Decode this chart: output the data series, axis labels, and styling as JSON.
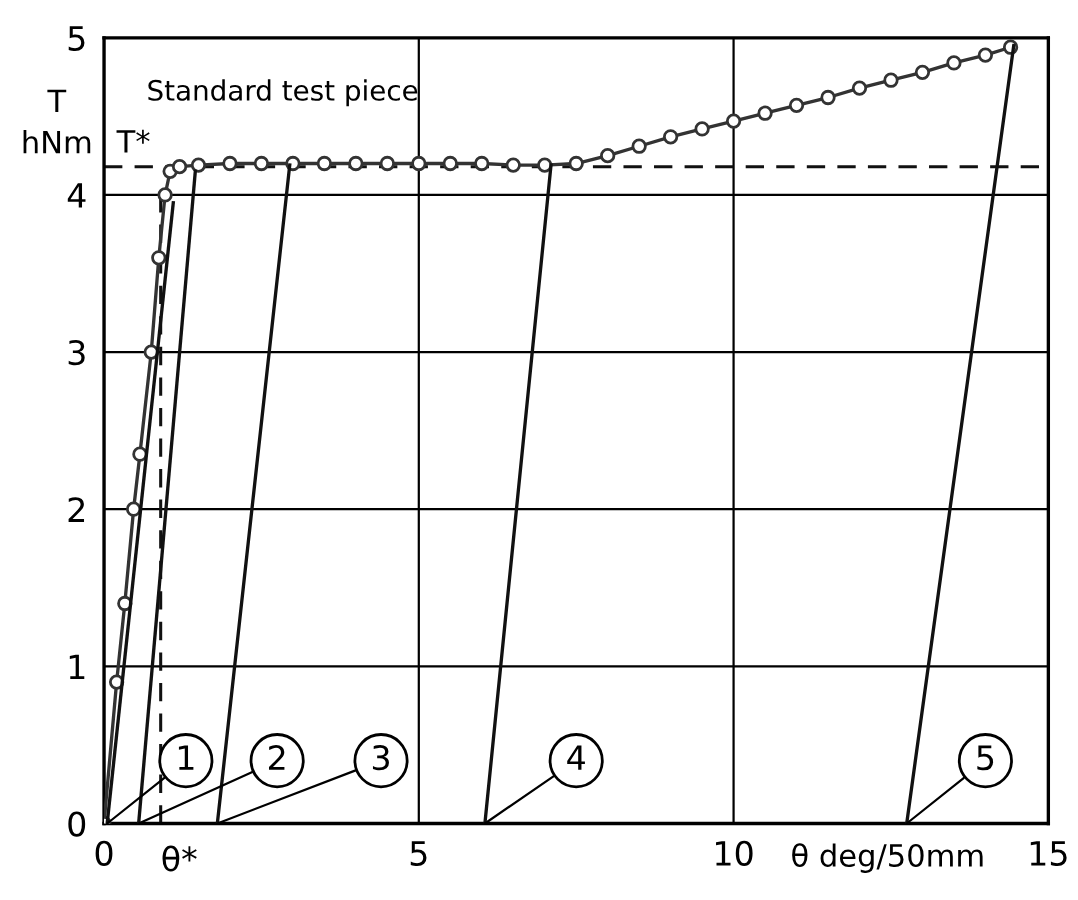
{
  "chart_data": {
    "type": "line",
    "xlabel": "θ deg/50mm",
    "ylabel": "T\nhNm",
    "xlim": [
      0,
      15
    ],
    "ylim": [
      0,
      5
    ],
    "xticks": [
      0,
      5,
      10,
      15
    ],
    "yticks": [
      0,
      1,
      2,
      3,
      4,
      5
    ],
    "grid": true,
    "series": [
      {
        "color": "#333333",
        "marker": "circle",
        "x": [
          0,
          0.2,
          0.33,
          0.47,
          0.57,
          0.75,
          0.87,
          0.97,
          1.05,
          1.2,
          1.5,
          2,
          2.5,
          3,
          3.5,
          4,
          4.5,
          5,
          5.5,
          6,
          6.5,
          7,
          7.5,
          8,
          8.5,
          9,
          9.5,
          10,
          10.5,
          11,
          11.5,
          12,
          12.5,
          13,
          13.5,
          14,
          14.4
        ],
        "values": [
          0,
          0.9,
          1.4,
          2,
          2.35,
          3,
          3.6,
          4,
          4.15,
          4.18,
          4.19,
          4.2,
          4.2,
          4.2,
          4.2,
          4.2,
          4.2,
          4.2,
          4.2,
          4.2,
          4.19,
          4.19,
          4.2,
          4.25,
          4.31,
          4.37,
          4.42,
          4.47,
          4.52,
          4.57,
          4.62,
          4.68,
          4.73,
          4.78,
          4.84,
          4.89,
          4.94
        ]
      },
      {
        "color": "#111111",
        "marker": "none",
        "x": [
          0.05,
          1.1
        ],
        "values": [
          0,
          3.95
        ]
      },
      {
        "color": "#111111",
        "marker": "none",
        "x": [
          0.55,
          1.45
        ],
        "values": [
          0,
          4.15
        ]
      },
      {
        "color": "#111111",
        "marker": "none",
        "x": [
          1.8,
          2.95
        ],
        "values": [
          0,
          4.19
        ]
      },
      {
        "color": "#111111",
        "marker": "none",
        "x": [
          6.05,
          7.1
        ],
        "values": [
          0,
          4.19
        ]
      },
      {
        "color": "#111111",
        "marker": "none",
        "x": [
          12.75,
          14.45
        ],
        "values": [
          0,
          4.95
        ]
      }
    ],
    "ref_lines": [
      {
        "axis": "y",
        "value": 4.18,
        "label": "T*",
        "line_style": "dashed",
        "color": "#111111"
      },
      {
        "axis": "x",
        "value": 0.9,
        "label": "θ*",
        "line_style": "dashed",
        "color": "#111111"
      }
    ],
    "annotations": [
      "Standard test piece",
      {
        "text": "1",
        "x": 0.05,
        "y": 0
      },
      {
        "text": "2",
        "x": 0.55,
        "y": 0
      },
      {
        "text": "3",
        "x": 1.8,
        "y": 0
      },
      {
        "text": "4",
        "x": 6.05,
        "y": 0
      },
      {
        "text": "5",
        "x": 12.75,
        "y": 0
      }
    ]
  }
}
